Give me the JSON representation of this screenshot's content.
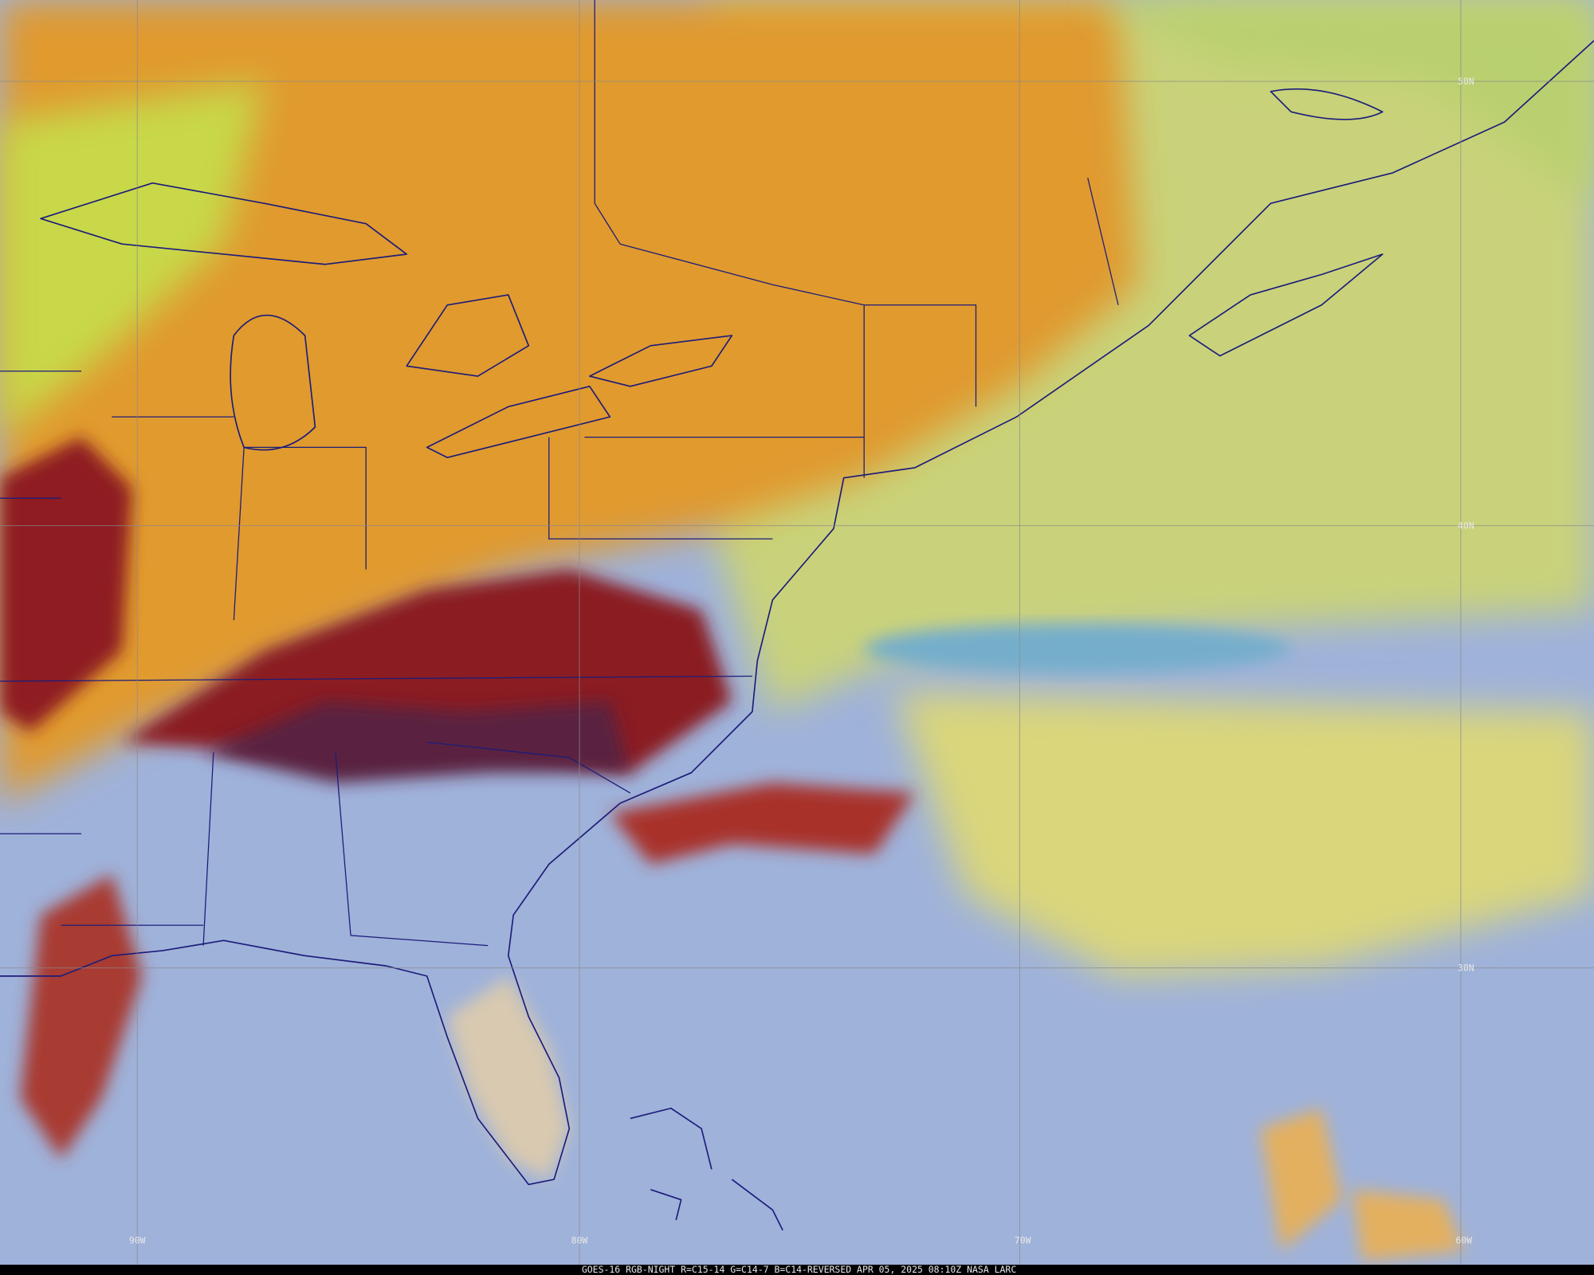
{
  "map": {
    "lat_labels": [
      "50N",
      "40N",
      "30N"
    ],
    "lon_labels": [
      "90W",
      "80W",
      "70W",
      "60W"
    ],
    "footer": "GOES-16 RGB-NIGHT R=C15-14 G=C14-7 B=C14-REVERSED APR 05, 2025 08:10Z NASA LARC"
  }
}
